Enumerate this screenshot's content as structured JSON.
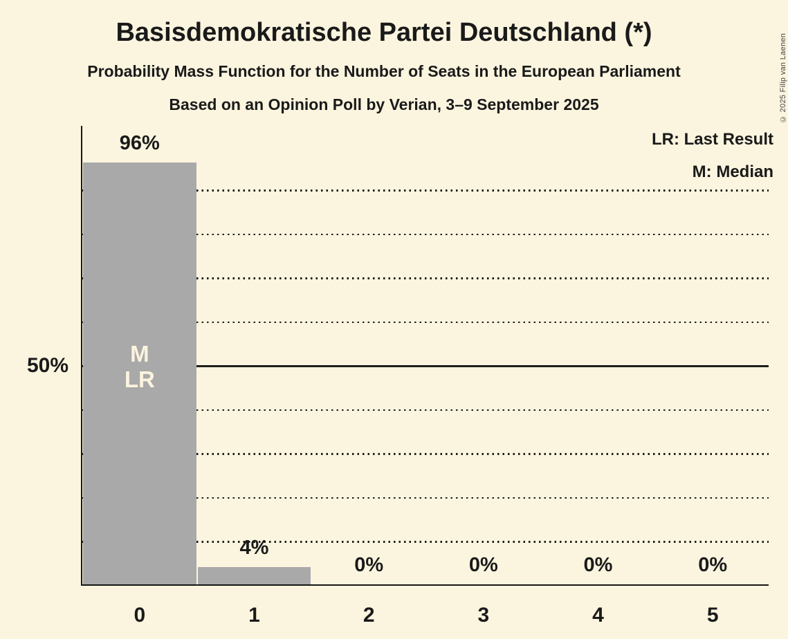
{
  "header": {
    "title": "Basisdemokratische Partei Deutschland (*)",
    "subtitle": "Probability Mass Function for the Number of Seats in the European Parliament",
    "poll_line": "Based on an Opinion Poll by Verian, 3–9 September 2025"
  },
  "copyright": "© 2025 Filip van Laenen",
  "legend": {
    "last_result_label": "LR: Last Result",
    "median_label": "M: Median"
  },
  "y_axis": {
    "label": "50%",
    "label_at_pct": 50
  },
  "colors": {
    "background": "#fbf5df",
    "bar": "#a9a9a9",
    "text": "#1a1a1a",
    "bar_annotation_text": "#faf3de",
    "axis": "#151515"
  },
  "chart_data": {
    "type": "bar",
    "title": "Basisdemokratische Partei Deutschland (*)",
    "subtitle": "Probability Mass Function for the Number of Seats in the European Parliament",
    "source_note": "Based on an Opinion Poll by Verian, 3–9 September 2025",
    "categories": [
      "0",
      "1",
      "2",
      "3",
      "4",
      "5"
    ],
    "values": [
      96,
      4,
      0,
      0,
      0,
      0
    ],
    "value_labels": [
      "96%",
      "4%",
      "0%",
      "0%",
      "0%",
      "0%"
    ],
    "xlabel": "",
    "ylabel": "",
    "ylim": [
      0,
      100
    ],
    "y_tick_labels": [
      "50%"
    ],
    "grid": {
      "interval_pct": 10,
      "min_pct": 10,
      "max_pct": 90,
      "solid_at_pct": 50,
      "style": "dotted"
    },
    "legend_entries": [
      "LR: Last Result",
      "M: Median"
    ],
    "annotations": [
      {
        "category": "0",
        "lines": [
          "M",
          "LR"
        ],
        "meaning": "Median and Last Result at 0 seats"
      }
    ]
  }
}
